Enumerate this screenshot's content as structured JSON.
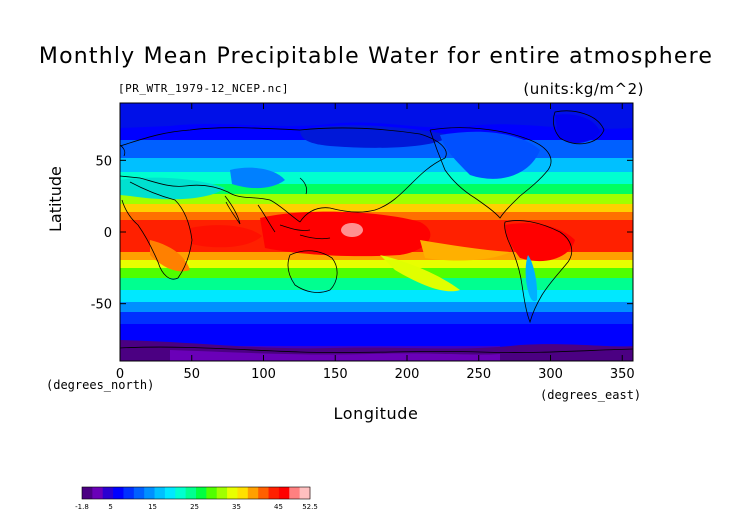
{
  "chart_data": {
    "type": "heatmap",
    "title": "Monthly Mean Precipitable Water for entire atmosphere",
    "source_file": "[PR_WTR_1979-12_NCEP.nc]",
    "units": "(units:kg/m^2)",
    "xlabel": "Longitude",
    "ylabel": "Latitude",
    "x_unit": "(degrees_east)",
    "y_unit": "(degrees_north)",
    "xlim": [
      0,
      357.5
    ],
    "ylim": [
      -90,
      90
    ],
    "x_ticks": [
      "0",
      "50",
      "100",
      "150",
      "200",
      "250",
      "300",
      "350"
    ],
    "x_tick_values": [
      0,
      50,
      100,
      150,
      200,
      250,
      300,
      350
    ],
    "y_ticks": [
      "50",
      "0",
      "-50"
    ],
    "y_tick_values": [
      50,
      0,
      -50
    ],
    "colorbar": {
      "min": -1.8,
      "max": 52.5,
      "tick_labels": [
        "-1.8",
        "5",
        "15",
        "25",
        "35",
        "45",
        "52.5"
      ],
      "tick_values": [
        -1.8,
        5,
        15,
        25,
        35,
        45,
        52.5
      ],
      "colors": [
        "#4b0082",
        "#6a00b8",
        "#2a00d0",
        "#0000ff",
        "#0030ff",
        "#0060ff",
        "#0090ff",
        "#00c0ff",
        "#00e8ff",
        "#00ffd0",
        "#00ff90",
        "#00ff40",
        "#50ff00",
        "#a0ff00",
        "#e8ff00",
        "#ffe000",
        "#ffa000",
        "#ff6000",
        "#ff2000",
        "#ff0000",
        "#ff8080",
        "#ffc0c0"
      ]
    },
    "field_description": "Zonal bands of monthly mean precipitable water: low values (blue/purple) at poles, high values (red, >45 kg/m^2) in the tropical belt, peaks over the western Pacific warm pool, Indonesia and South America; continental outlines overlaid."
  }
}
